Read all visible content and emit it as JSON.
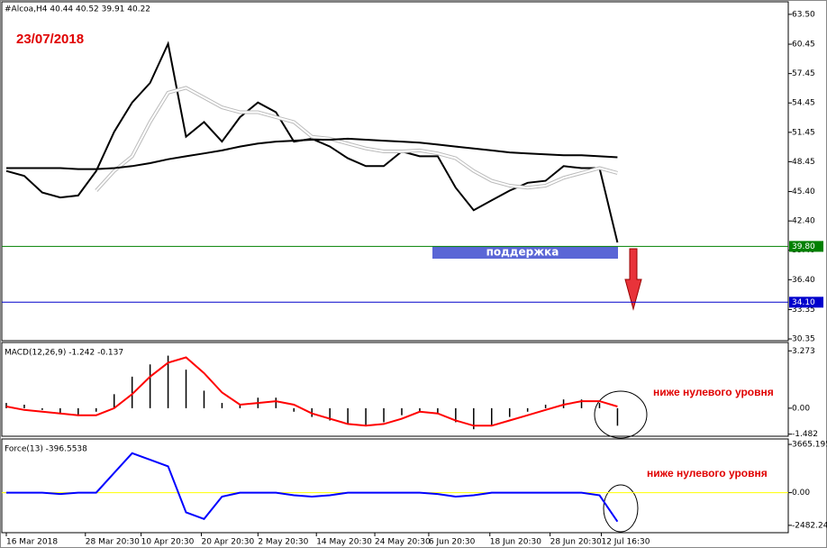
{
  "chart_data": [
    {
      "type": "line",
      "title": "#Alcoa,H4  40.44 40.52 39.91 40.22",
      "annotations": [
        "23/07/2018",
        "поддержка"
      ],
      "x": [
        0,
        1,
        2,
        3,
        4,
        5,
        6,
        7,
        8,
        9,
        10,
        11,
        12,
        13,
        14,
        15,
        16,
        17,
        18,
        19,
        20,
        21,
        22,
        23,
        24,
        25,
        26,
        27,
        28,
        29,
        30,
        31,
        32,
        33,
        34
      ],
      "xlim": [
        -0.25,
        43.5
      ],
      "series": [
        {
          "name": "Close",
          "color": "#000000",
          "values": [
            47.5,
            47.0,
            45.3,
            44.8,
            45.0,
            47.5,
            51.5,
            54.5,
            56.5,
            60.5,
            51.0,
            52.5,
            50.5,
            53.0,
            54.5,
            53.5,
            50.5,
            50.8,
            50.0,
            48.8,
            48.0,
            48.0,
            49.5,
            49.0,
            49.0,
            45.8,
            43.5,
            44.5,
            45.5,
            46.3,
            46.5,
            48.0,
            47.8,
            47.8,
            40.2
          ]
        },
        {
          "name": "MA fast",
          "color": "#ffffff",
          "values": [
            null,
            null,
            null,
            null,
            null,
            45.5,
            47.5,
            49.0,
            52.5,
            55.5,
            56.0,
            55.0,
            54.0,
            53.5,
            53.5,
            53.0,
            52.5,
            51.0,
            50.8,
            50.3,
            49.8,
            49.5,
            49.5,
            49.6,
            49.3,
            48.8,
            47.5,
            46.5,
            46.0,
            45.8,
            46.0,
            46.8,
            47.3,
            47.8,
            47.3
          ]
        },
        {
          "name": "MA slow",
          "color": "#000000",
          "values": [
            47.8,
            47.8,
            47.8,
            47.8,
            47.7,
            47.7,
            47.8,
            48.0,
            48.3,
            48.7,
            49.0,
            49.3,
            49.6,
            50.0,
            50.3,
            50.5,
            50.6,
            50.7,
            50.7,
            50.8,
            50.7,
            50.6,
            50.5,
            50.4,
            50.2,
            50.0,
            49.8,
            49.6,
            49.4,
            49.3,
            49.2,
            49.1,
            49.1,
            49.0,
            48.9
          ]
        }
      ],
      "ylim": [
        30.17,
        64.78
      ],
      "yticks": [
        {
          "value": 63.5,
          "label": "63.50"
        },
        60.45,
        57.45,
        54.45,
        51.45,
        48.45,
        {
          "value": 45.4,
          "label": "45.40"
        },
        {
          "value": 42.4,
          "label": "42.40"
        },
        {
          "value": 39.4,
          "label": "39.40"
        },
        {
          "value": 36.4,
          "label": "36.40"
        },
        33.35,
        30.35
      ],
      "levels": [
        {
          "value": 39.8,
          "label": "39.80",
          "color": "#008000"
        },
        {
          "value": 34.1,
          "label": "34.10",
          "color": "#0000cc"
        }
      ]
    },
    {
      "type": "bar",
      "title": "MACD(12,26,9) -1.242 -0.137",
      "annotations": [
        "ниже нулевого уровня"
      ],
      "x": [
        0,
        1,
        2,
        3,
        4,
        5,
        6,
        7,
        8,
        9,
        10,
        11,
        12,
        13,
        14,
        15,
        16,
        17,
        18,
        19,
        20,
        21,
        22,
        23,
        24,
        25,
        26,
        27,
        28,
        29,
        30,
        31,
        32,
        33,
        34
      ],
      "xlim": [
        -0.25,
        43.5
      ],
      "values": [
        0.3,
        0.2,
        -0.1,
        -0.3,
        -0.4,
        -0.2,
        0.8,
        1.8,
        2.5,
        3.0,
        2.2,
        1.0,
        0.3,
        0.2,
        0.6,
        0.6,
        -0.2,
        -0.5,
        -0.7,
        -0.9,
        -1.0,
        -0.8,
        -0.4,
        -0.2,
        -0.3,
        -0.8,
        -1.2,
        -1.0,
        -0.5,
        -0.2,
        0.2,
        0.5,
        0.5,
        0.3,
        -1.0
      ],
      "color": "#000000",
      "series": [
        {
          "name": "Signal",
          "color": "#ff0000",
          "values": [
            0.1,
            -0.1,
            -0.2,
            -0.3,
            -0.4,
            -0.4,
            0.0,
            0.8,
            1.8,
            2.6,
            2.9,
            2.0,
            0.9,
            0.2,
            0.3,
            0.4,
            0.2,
            -0.3,
            -0.6,
            -0.9,
            -1.0,
            -0.9,
            -0.6,
            -0.2,
            -0.3,
            -0.7,
            -1.0,
            -1.0,
            -0.7,
            -0.4,
            -0.1,
            0.2,
            0.4,
            0.4,
            0.1
          ]
        }
      ],
      "ylim": [
        -1.6,
        3.75
      ],
      "yticks": [
        3.273,
        {
          "value": 0,
          "label": "0.00"
        },
        -1.482
      ]
    },
    {
      "type": "line",
      "title": "Force(13) -396.5538",
      "annotations": [
        "ниже нулевого уровня"
      ],
      "x": [
        0,
        1,
        2,
        3,
        4,
        5,
        6,
        7,
        8,
        9,
        10,
        11,
        12,
        13,
        14,
        15,
        16,
        17,
        18,
        19,
        20,
        21,
        22,
        23,
        24,
        25,
        26,
        27,
        28,
        29,
        30,
        31,
        32,
        33,
        34
      ],
      "xlim": [
        -0.25,
        43.5
      ],
      "series": [
        {
          "name": "Force",
          "color": "#0000ff",
          "values": [
            0,
            0,
            0,
            -100,
            0,
            0,
            1500,
            3000,
            2500,
            2000,
            -1500,
            -2000,
            -300,
            0,
            0,
            0,
            -200,
            -300,
            -200,
            0,
            0,
            0,
            0,
            0,
            -100,
            -300,
            -200,
            0,
            0,
            0,
            0,
            0,
            0,
            -200,
            -2200
          ]
        }
      ],
      "ylim": [
        -3040,
        4080
      ],
      "yticks": [
        3665.195,
        {
          "value": 0,
          "label": "0.00"
        },
        -2482.24
      ],
      "levels": [
        {
          "value": 0,
          "color": "#ffff00"
        }
      ],
      "xticks": [
        {
          "value": 0,
          "label": "16 Mar 2018"
        },
        {
          "value": 4.4,
          "label": "28 Mar 20:30"
        },
        {
          "value": 7.5,
          "label": "10 Apr 20:30"
        },
        {
          "value": 10.85,
          "label": "20 Apr 20:30"
        },
        {
          "value": 14,
          "label": "2 May 20:30"
        },
        {
          "value": 17.25,
          "label": "14 May 20:30"
        },
        {
          "value": 20.5,
          "label": "24 May 20:30"
        },
        {
          "value": 23.5,
          "label": "6 Jun 20:30"
        },
        {
          "value": 26.9,
          "label": "18 Jun 20:30"
        },
        {
          "value": 30.25,
          "label": "28 Jun 20:30"
        },
        {
          "value": 33.1,
          "label": "12 Jul 16:30"
        }
      ]
    }
  ]
}
